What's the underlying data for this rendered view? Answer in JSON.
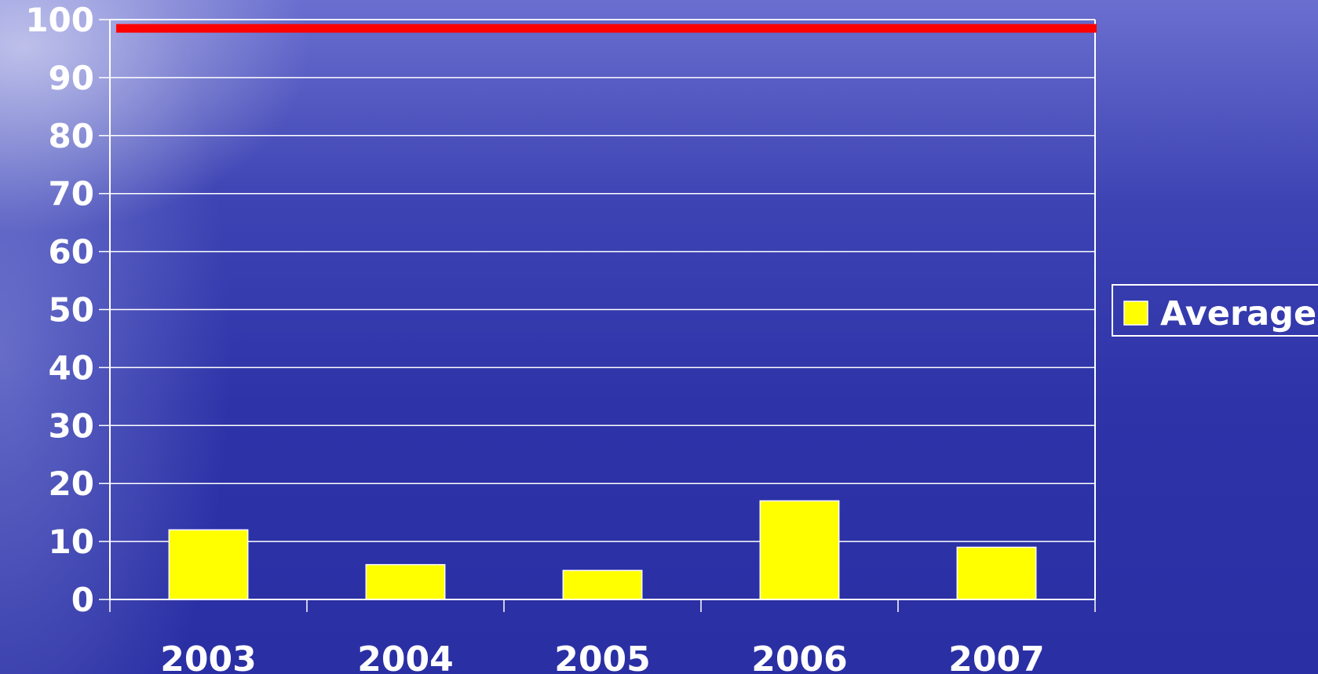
{
  "chart_data": {
    "type": "bar",
    "categories": [
      "2003",
      "2004",
      "2005",
      "2006",
      "2007"
    ],
    "series": [
      {
        "name": "Average",
        "values": [
          12,
          6,
          5,
          17,
          9
        ]
      }
    ],
    "reference_line": {
      "value": 98.5
    },
    "ylim": [
      0,
      100
    ],
    "yticks": [
      0,
      10,
      20,
      30,
      40,
      50,
      60,
      70,
      80,
      90,
      100
    ],
    "grid": true,
    "legend_position": "right",
    "title": "",
    "xlabel": "",
    "ylabel": ""
  },
  "colors": {
    "bar": "#ffff00",
    "reference_line": "#ff0000",
    "grid": "#ffffff"
  }
}
